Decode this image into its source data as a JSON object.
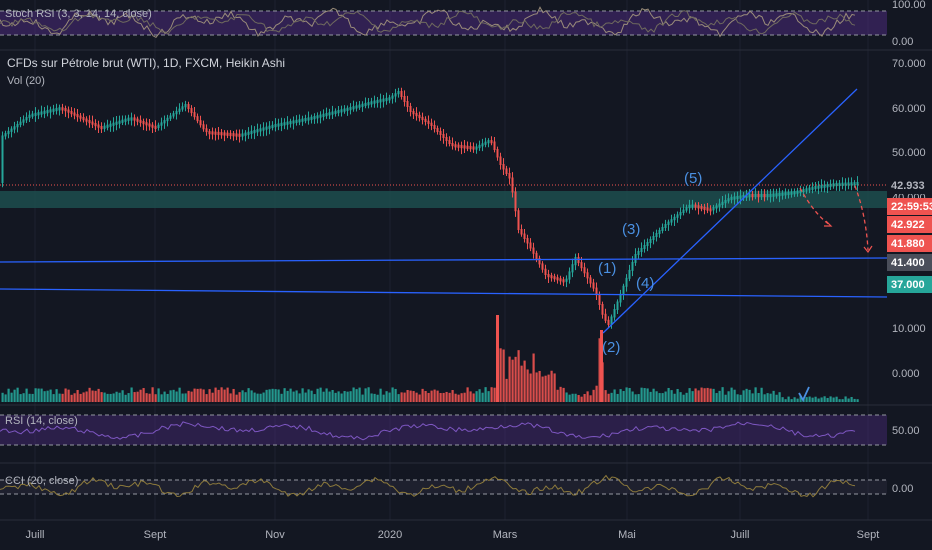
{
  "header": {
    "stoch_label": "Stoch RSI (3, 3, 14, 14, close)",
    "main_label": "CFDs sur Pétrole brut (WTI), 1D, FXCM, Heikin Ashi",
    "vol_label": "Vol (20)",
    "rsi_label": "RSI (14, close)",
    "cci_label": "CCI (20, close)"
  },
  "colors": {
    "background": "#131722",
    "up": "#26a69a",
    "down": "#ef5350",
    "trendline": "#2962ff",
    "oscillator_band": "#4a2a7a",
    "support_zone": "#1d4e4d",
    "wave_label": "#4a90e2"
  },
  "price_scale": {
    "ticks": [
      "70.000",
      "60.000",
      "50.000",
      "40.000",
      "10.000",
      "0.000"
    ]
  },
  "price_tags": [
    {
      "label": "42.933",
      "bg": "#131722",
      "fg": "#b2b5be"
    },
    {
      "label": "22:59:53",
      "bg": "#ef5350",
      "fg": "#ffffff"
    },
    {
      "label": "42.922",
      "bg": "#ef5350",
      "fg": "#ffffff"
    },
    {
      "label": "41.880",
      "bg": "#ef5350",
      "fg": "#ffffff"
    },
    {
      "label": "41.400",
      "bg": "#4a4e5a",
      "fg": "#ffffff"
    },
    {
      "label": "37.000",
      "bg": "#26a69a",
      "fg": "#ffffff"
    }
  ],
  "stoch_scale": [
    "100.00",
    "0.00"
  ],
  "rsi_scale": [
    "50.00"
  ],
  "cci_scale": [
    "0.00"
  ],
  "time_axis": [
    "Juill",
    "Sept",
    "Nov",
    "2020",
    "Mars",
    "Mai",
    "Juill",
    "Sept"
  ],
  "annotations": [
    "(1)",
    "(2)",
    "(3)",
    "(4)",
    "(5)"
  ],
  "chart_data": {
    "type": "candlestick",
    "title": "CFDs sur Pétrole brut (WTI), 1D, FXCM, Heikin Ashi",
    "x": [
      "Juill",
      "Sept",
      "Nov",
      "2020",
      "Mars",
      "Mai",
      "Juill",
      "Sept"
    ],
    "series": [
      {
        "name": "CFDs sur Pétrole brut (WTI)",
        "values": [
          {
            "x": "Juill",
            "close": 57
          },
          {
            "x": "Sept",
            "close": 56
          },
          {
            "x": "Nov",
            "close": 56
          },
          {
            "x": "2020",
            "close": 62
          },
          {
            "x": "Mars",
            "close": 44
          },
          {
            "x": "Mai",
            "close": 20
          },
          {
            "x": "Juill",
            "close": 40
          },
          {
            "x": "Sept",
            "close": 43
          }
        ]
      }
    ],
    "indicators": [
      "Vol (20)",
      "Stoch RSI (3, 3, 14, 14, close)",
      "RSI (14, close)",
      "CCI (20, close)"
    ],
    "current_price": 42.933,
    "levels": [
      42.933,
      42.922,
      41.88,
      41.4,
      37.0
    ],
    "elliott_waves": [
      "(1)",
      "(2)",
      "(3)",
      "(4)",
      "(5)"
    ]
  }
}
